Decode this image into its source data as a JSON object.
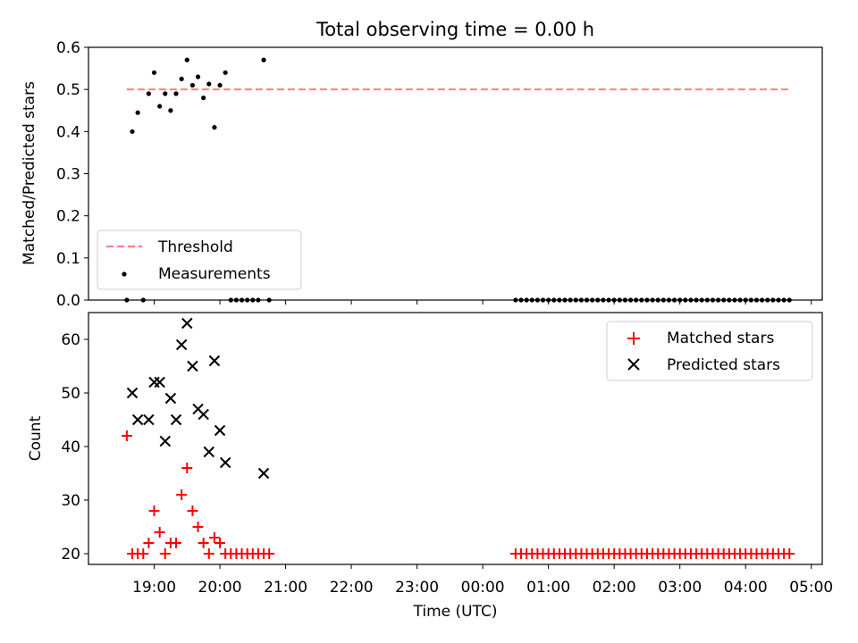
{
  "chart_data": [
    {
      "type": "scatter",
      "title": "Total observing time = 0.00 h",
      "xlabel": "",
      "ylabel": "Matched/Predicted stars",
      "ylim": [
        0,
        0.6
      ],
      "y_ticks": [
        0.0,
        0.1,
        0.2,
        0.3,
        0.4,
        0.5,
        0.6
      ],
      "y_tick_labels": [
        "0.0",
        "0.1",
        "0.2",
        "0.3",
        "0.4",
        "0.5",
        "0.6"
      ],
      "x_tick_labels_hidden": true,
      "legend_position": "lower-left",
      "series": [
        {
          "name": "Threshold",
          "kind": "dashed-line",
          "color": "#ff7f7f",
          "points": [
            [
              "18:35",
              0.5
            ],
            [
              "04:42",
              0.5
            ]
          ]
        },
        {
          "name": "Measurements",
          "kind": "dot",
          "color": "#000000",
          "points": [
            [
              "18:35",
              0.0
            ],
            [
              "18:40",
              0.4
            ],
            [
              "18:45",
              0.445
            ],
            [
              "18:50",
              0.0
            ],
            [
              "18:55",
              0.49
            ],
            [
              "19:00",
              0.54
            ],
            [
              "19:05",
              0.46
            ],
            [
              "19:10",
              0.49
            ],
            [
              "19:15",
              0.45
            ],
            [
              "19:20",
              0.49
            ],
            [
              "19:25",
              0.525
            ],
            [
              "19:30",
              0.57
            ],
            [
              "19:35",
              0.51
            ],
            [
              "19:40",
              0.53
            ],
            [
              "19:45",
              0.48
            ],
            [
              "19:50",
              0.513
            ],
            [
              "19:55",
              0.41
            ],
            [
              "20:00",
              0.51
            ],
            [
              "20:05",
              0.54
            ],
            [
              "20:10",
              0.0
            ],
            [
              "20:15",
              0.0
            ],
            [
              "20:20",
              0.0
            ],
            [
              "20:25",
              0.0
            ],
            [
              "20:30",
              0.0
            ],
            [
              "20:35",
              0.0
            ],
            [
              "20:40",
              0.57
            ],
            [
              "20:45",
              0.0
            ],
            [
              "00:30",
              0.0
            ],
            [
              "00:35",
              0.0
            ],
            [
              "00:40",
              0.0
            ],
            [
              "00:45",
              0.0
            ],
            [
              "00:50",
              0.0
            ],
            [
              "00:55",
              0.0
            ],
            [
              "01:00",
              0.0
            ],
            [
              "01:05",
              0.0
            ],
            [
              "01:10",
              0.0
            ],
            [
              "01:15",
              0.0
            ],
            [
              "01:20",
              0.0
            ],
            [
              "01:25",
              0.0
            ],
            [
              "01:30",
              0.0
            ],
            [
              "01:35",
              0.0
            ],
            [
              "01:40",
              0.0
            ],
            [
              "01:45",
              0.0
            ],
            [
              "01:50",
              0.0
            ],
            [
              "01:55",
              0.0
            ],
            [
              "02:00",
              0.0
            ],
            [
              "02:05",
              0.0
            ],
            [
              "02:10",
              0.0
            ],
            [
              "02:15",
              0.0
            ],
            [
              "02:20",
              0.0
            ],
            [
              "02:25",
              0.0
            ],
            [
              "02:30",
              0.0
            ],
            [
              "02:35",
              0.0
            ],
            [
              "02:40",
              0.0
            ],
            [
              "02:45",
              0.0
            ],
            [
              "02:50",
              0.0
            ],
            [
              "02:55",
              0.0
            ],
            [
              "03:00",
              0.0
            ],
            [
              "03:05",
              0.0
            ],
            [
              "03:10",
              0.0
            ],
            [
              "03:15",
              0.0
            ],
            [
              "03:20",
              0.0
            ],
            [
              "03:25",
              0.0
            ],
            [
              "03:30",
              0.0
            ],
            [
              "03:35",
              0.0
            ],
            [
              "03:40",
              0.0
            ],
            [
              "03:45",
              0.0
            ],
            [
              "03:50",
              0.0
            ],
            [
              "03:55",
              0.0
            ],
            [
              "04:00",
              0.0
            ],
            [
              "04:05",
              0.0
            ],
            [
              "04:10",
              0.0
            ],
            [
              "04:15",
              0.0
            ],
            [
              "04:20",
              0.0
            ],
            [
              "04:25",
              0.0
            ],
            [
              "04:30",
              0.0
            ],
            [
              "04:35",
              0.0
            ],
            [
              "04:40",
              0.0
            ]
          ]
        }
      ]
    },
    {
      "type": "scatter",
      "title": "",
      "xlabel": "Time (UTC)",
      "ylabel": "Count",
      "ylim": [
        18,
        65
      ],
      "y_ticks": [
        20,
        30,
        40,
        50,
        60
      ],
      "y_tick_labels": [
        "20",
        "30",
        "40",
        "50",
        "60"
      ],
      "x_ticks": [
        "19:00",
        "20:00",
        "21:00",
        "22:00",
        "23:00",
        "00:00",
        "01:00",
        "02:00",
        "03:00",
        "04:00",
        "05:00"
      ],
      "x_tick_labels": [
        "19:00",
        "20:00",
        "21:00",
        "22:00",
        "23:00",
        "00:00",
        "01:00",
        "02:00",
        "03:00",
        "04:00",
        "05:00"
      ],
      "xlim": [
        "18:00",
        "05:10"
      ],
      "legend_position": "top-right",
      "series": [
        {
          "name": "Matched stars",
          "kind": "plus",
          "color": "#ff0000",
          "points": [
            [
              "18:35",
              42
            ],
            [
              "18:40",
              20
            ],
            [
              "18:45",
              20
            ],
            [
              "18:50",
              20
            ],
            [
              "18:55",
              22
            ],
            [
              "19:00",
              28
            ],
            [
              "19:05",
              24
            ],
            [
              "19:10",
              20
            ],
            [
              "19:15",
              22
            ],
            [
              "19:20",
              22
            ],
            [
              "19:25",
              31
            ],
            [
              "19:30",
              36
            ],
            [
              "19:35",
              28
            ],
            [
              "19:40",
              25
            ],
            [
              "19:45",
              22
            ],
            [
              "19:50",
              20
            ],
            [
              "19:55",
              23
            ],
            [
              "20:00",
              22
            ],
            [
              "20:05",
              20
            ],
            [
              "20:10",
              20
            ],
            [
              "20:15",
              20
            ],
            [
              "20:20",
              20
            ],
            [
              "20:25",
              20
            ],
            [
              "20:30",
              20
            ],
            [
              "20:35",
              20
            ],
            [
              "20:40",
              20
            ],
            [
              "20:45",
              20
            ],
            [
              "00:30",
              20
            ],
            [
              "00:35",
              20
            ],
            [
              "00:40",
              20
            ],
            [
              "00:45",
              20
            ],
            [
              "00:50",
              20
            ],
            [
              "00:55",
              20
            ],
            [
              "01:00",
              20
            ],
            [
              "01:05",
              20
            ],
            [
              "01:10",
              20
            ],
            [
              "01:15",
              20
            ],
            [
              "01:20",
              20
            ],
            [
              "01:25",
              20
            ],
            [
              "01:30",
              20
            ],
            [
              "01:35",
              20
            ],
            [
              "01:40",
              20
            ],
            [
              "01:45",
              20
            ],
            [
              "01:50",
              20
            ],
            [
              "01:55",
              20
            ],
            [
              "02:00",
              20
            ],
            [
              "02:05",
              20
            ],
            [
              "02:10",
              20
            ],
            [
              "02:15",
              20
            ],
            [
              "02:20",
              20
            ],
            [
              "02:25",
              20
            ],
            [
              "02:30",
              20
            ],
            [
              "02:35",
              20
            ],
            [
              "02:40",
              20
            ],
            [
              "02:45",
              20
            ],
            [
              "02:50",
              20
            ],
            [
              "02:55",
              20
            ],
            [
              "03:00",
              20
            ],
            [
              "03:05",
              20
            ],
            [
              "03:10",
              20
            ],
            [
              "03:15",
              20
            ],
            [
              "03:20",
              20
            ],
            [
              "03:25",
              20
            ],
            [
              "03:30",
              20
            ],
            [
              "03:35",
              20
            ],
            [
              "03:40",
              20
            ],
            [
              "03:45",
              20
            ],
            [
              "03:50",
              20
            ],
            [
              "03:55",
              20
            ],
            [
              "04:00",
              20
            ],
            [
              "04:05",
              20
            ],
            [
              "04:10",
              20
            ],
            [
              "04:15",
              20
            ],
            [
              "04:20",
              20
            ],
            [
              "04:25",
              20
            ],
            [
              "04:30",
              20
            ],
            [
              "04:35",
              20
            ],
            [
              "04:40",
              20
            ]
          ]
        },
        {
          "name": "Predicted stars",
          "kind": "x",
          "color": "#000000",
          "points": [
            [
              "18:40",
              50
            ],
            [
              "18:45",
              45
            ],
            [
              "18:55",
              45
            ],
            [
              "19:00",
              52
            ],
            [
              "19:05",
              52
            ],
            [
              "19:10",
              41
            ],
            [
              "19:15",
              49
            ],
            [
              "19:20",
              45
            ],
            [
              "19:25",
              59
            ],
            [
              "19:30",
              63
            ],
            [
              "19:35",
              55
            ],
            [
              "19:40",
              47
            ],
            [
              "19:45",
              46
            ],
            [
              "19:50",
              39
            ],
            [
              "19:55",
              56
            ],
            [
              "20:00",
              43
            ],
            [
              "20:05",
              37
            ],
            [
              "20:40",
              35
            ]
          ]
        }
      ]
    }
  ]
}
